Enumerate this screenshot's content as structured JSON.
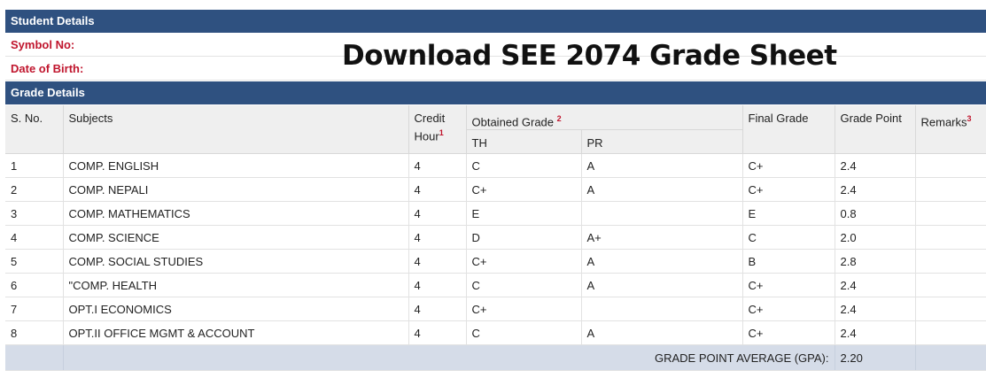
{
  "student_details": {
    "heading": "Student Details",
    "symbol_label": "Symbol No:",
    "dob_label": "Date of Birth:"
  },
  "banner": "Download SEE 2074 Grade Sheet",
  "grade_details": {
    "heading": "Grade Details",
    "headers": {
      "sno": "S. No.",
      "subjects": "Subjects",
      "credit": "Credit",
      "hour": "Hour",
      "hour_sup": "1",
      "obtained": "Obtained Grade",
      "obtained_sup": "2",
      "th": "TH",
      "pr": "PR",
      "final_grade": "Final Grade",
      "grade_point": "Grade Point",
      "remarks": "Remarks",
      "remarks_sup": "3"
    },
    "rows": [
      {
        "sno": "1",
        "subject": "COMP. ENGLISH",
        "credit": "4",
        "th": "C",
        "pr": "A",
        "final": "C+",
        "gp": "2.4",
        "remarks": ""
      },
      {
        "sno": "2",
        "subject": "COMP. NEPALI",
        "credit": "4",
        "th": "C+",
        "pr": "A",
        "final": "C+",
        "gp": "2.4",
        "remarks": ""
      },
      {
        "sno": "3",
        "subject": "COMP. MATHEMATICS",
        "credit": "4",
        "th": "E",
        "pr": "",
        "final": "E",
        "gp": "0.8",
        "remarks": ""
      },
      {
        "sno": "4",
        "subject": "COMP. SCIENCE",
        "credit": "4",
        "th": "D",
        "pr": "A+",
        "final": "C",
        "gp": "2.0",
        "remarks": ""
      },
      {
        "sno": "5",
        "subject": "COMP. SOCIAL STUDIES",
        "credit": "4",
        "th": "C+",
        "pr": "A",
        "final": "B",
        "gp": "2.8",
        "remarks": ""
      },
      {
        "sno": "6",
        "subject": "\"COMP. HEALTH",
        "credit": "4",
        "th": "C",
        "pr": "A",
        "final": "C+",
        "gp": "2.4",
        "remarks": ""
      },
      {
        "sno": "7",
        "subject": "OPT.I ECONOMICS",
        "credit": "4",
        "th": "C+",
        "pr": "",
        "final": "C+",
        "gp": "2.4",
        "remarks": ""
      },
      {
        "sno": "8",
        "subject": "OPT.II OFFICE MGMT & ACCOUNT",
        "credit": "4",
        "th": "C",
        "pr": "A",
        "final": "C+",
        "gp": "2.4",
        "remarks": ""
      }
    ],
    "gpa_label": "GRADE POINT AVERAGE (GPA):",
    "gpa_value": "2.20"
  },
  "colors": {
    "section_header": "#2f5180",
    "label_red": "#c0152d",
    "gpa_row": "#d5dce8"
  }
}
